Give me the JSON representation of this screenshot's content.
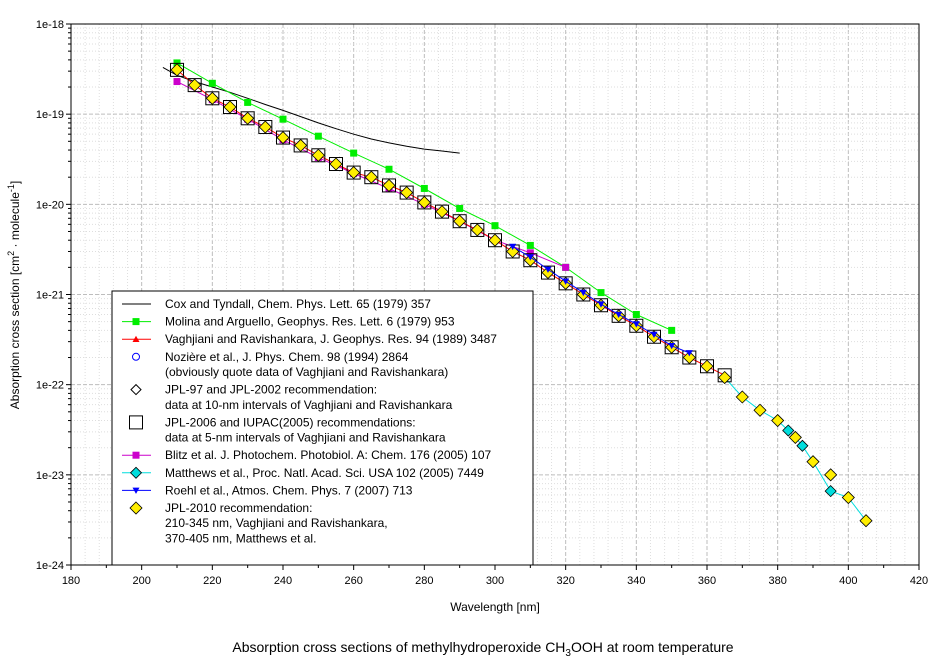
{
  "chart_data": {
    "type": "scatter",
    "title": "Absorption cross sections of methylhydroperoxide CH₃OOH at room temperature",
    "title_parts": {
      "pre": "Absorption cross sections of methylhydroperoxide CH",
      "sub": "3",
      "post": "OOH at room temperature"
    },
    "xlabel": "Wavelength [nm]",
    "ylabel_parts": {
      "a": "Absorption cross section [cm",
      "b": "2",
      "c": " · molecule",
      "d": "-1",
      "e": "]"
    },
    "xlim": [
      180,
      420
    ],
    "ylim": [
      1e-24,
      1e-18
    ],
    "x_ticks": [
      "180",
      "200",
      "220",
      "240",
      "260",
      "280",
      "300",
      "320",
      "340",
      "360",
      "380",
      "400",
      "420"
    ],
    "y_ticks": [
      "1e-24",
      "1e-23",
      "1e-22",
      "1e-21",
      "1e-20",
      "1e-19",
      "1e-18"
    ],
    "y_scale": "log",
    "grid": true,
    "legend_position": "bottom-left",
    "series": [
      {
        "name": "Cox and Tyndall",
        "legend_lines": [
          "Cox and Tyndall, Chem. Phys. Lett. 65 (1979) 357"
        ],
        "marker": "none",
        "color": "#000000",
        "line": true,
        "x": [
          206,
          210,
          215,
          220,
          225,
          230,
          235,
          240,
          245,
          250,
          255,
          260,
          265,
          270,
          275,
          280,
          285,
          290
        ],
        "y": [
          3.3e-19,
          2.7e-19,
          2.3e-19,
          2e-19,
          1.75e-19,
          1.5e-19,
          1.28e-19,
          1.1e-19,
          9.4e-20,
          8e-20,
          6.9e-20,
          6e-20,
          5.3e-20,
          4.8e-20,
          4.4e-20,
          4.1e-20,
          3.9e-20,
          3.7e-20
        ]
      },
      {
        "name": "Molina and Arguello",
        "legend_lines": [
          "Molina and Arguello, Geophys. Res. Lett. 6 (1979) 953"
        ],
        "marker": "square",
        "color": "#00ee00",
        "line": true,
        "x": [
          210,
          220,
          230,
          240,
          250,
          260,
          270,
          280,
          290,
          300,
          310,
          320,
          330,
          340,
          350
        ],
        "y": [
          3.7e-19,
          2.2e-19,
          1.35e-19,
          8.8e-20,
          5.7e-20,
          3.7e-20,
          2.45e-20,
          1.5e-20,
          9e-21,
          5.8e-21,
          3.5e-21,
          2e-21,
          1.05e-21,
          6e-22,
          4e-22
        ]
      },
      {
        "name": "Vaghjiani and Ravishankara",
        "legend_lines": [
          "Vaghjiani and Ravishankara, J. Geophys. Res. 94 (1989) 3487"
        ],
        "marker": "triangle",
        "color": "#ff0000",
        "line": true,
        "x": [
          210,
          215,
          220,
          225,
          230,
          235,
          240,
          245,
          250,
          255,
          260,
          265,
          270,
          275,
          280,
          285,
          290,
          295,
          300,
          305,
          310,
          315,
          320,
          325,
          330,
          335,
          340,
          345,
          350,
          355,
          360,
          365
        ],
        "y": [
          3.1e-19,
          2.1e-19,
          1.5e-19,
          1.2e-19,
          9e-20,
          7.2e-20,
          5.5e-20,
          4.5e-20,
          3.5e-20,
          2.8e-20,
          2.25e-20,
          2e-20,
          1.62e-20,
          1.35e-20,
          1.05e-20,
          8.3e-21,
          6.5e-21,
          5.2e-21,
          4e-21,
          3e-21,
          2.4e-21,
          1.75e-21,
          1.33e-21,
          1e-21,
          7.6e-22,
          5.8e-22,
          4.5e-22,
          3.4e-22,
          2.6e-22,
          2e-22,
          1.6e-22,
          1.27e-22
        ]
      },
      {
        "name": "Nozière et al.",
        "legend_lines": [
          "Nozière et al., J. Phys. Chem. 98 (1994) 2864",
          "(obviously quote data of Vaghjiani and Ravishankara)"
        ],
        "marker": "circle",
        "color": "#0000ff",
        "line": false,
        "x": [
          210,
          220,
          230,
          240,
          250,
          260,
          270,
          280,
          290,
          300,
          310,
          320,
          330,
          340,
          350,
          360
        ],
        "y": [
          3.1e-19,
          1.5e-19,
          9e-20,
          5.5e-20,
          3.5e-20,
          2.25e-20,
          1.62e-20,
          1.05e-20,
          6.5e-21,
          4e-21,
          2.4e-21,
          1.33e-21,
          7.6e-22,
          4.5e-22,
          2.6e-22,
          1.6e-22
        ]
      },
      {
        "name": "JPL-97 and JPL-2002 recommendation",
        "legend_lines": [
          "JPL-97 and JPL-2002 recommendation:",
          "data at 10-nm intervals  of Vaghjiani and Ravishankara"
        ],
        "marker": "diamond-open",
        "color": "#000000",
        "line": false,
        "x": [
          210,
          220,
          230,
          240,
          250,
          260,
          270,
          280,
          290,
          300,
          310,
          320,
          330,
          340,
          350,
          360
        ],
        "y": [
          3.1e-19,
          1.5e-19,
          9e-20,
          5.5e-20,
          3.5e-20,
          2.25e-20,
          1.62e-20,
          1.05e-20,
          6.5e-21,
          4e-21,
          2.4e-21,
          1.33e-21,
          7.6e-22,
          4.5e-22,
          2.6e-22,
          1.6e-22
        ]
      },
      {
        "name": "JPL-2006 and IUPAC(2005) recommendations",
        "legend_lines": [
          "JPL-2006 and IUPAC(2005) recommendations:",
          "data at 5-nm intervals  of Vaghjiani and Ravishankara"
        ],
        "marker": "square-open",
        "color": "#000000",
        "line": false,
        "x": [
          210,
          215,
          220,
          225,
          230,
          235,
          240,
          245,
          250,
          255,
          260,
          265,
          270,
          275,
          280,
          285,
          290,
          295,
          300,
          305,
          310,
          315,
          320,
          325,
          330,
          335,
          340,
          345,
          350,
          355,
          360,
          365
        ],
        "y": [
          3.1e-19,
          2.1e-19,
          1.5e-19,
          1.2e-19,
          9e-20,
          7.2e-20,
          5.5e-20,
          4.5e-20,
          3.5e-20,
          2.8e-20,
          2.25e-20,
          2e-20,
          1.62e-20,
          1.35e-20,
          1.05e-20,
          8.3e-21,
          6.5e-21,
          5.2e-21,
          4e-21,
          3e-21,
          2.4e-21,
          1.75e-21,
          1.33e-21,
          1e-21,
          7.6e-22,
          5.8e-22,
          4.5e-22,
          3.4e-22,
          2.6e-22,
          2e-22,
          1.6e-22,
          1.27e-22
        ]
      },
      {
        "name": "Blitz et al.",
        "legend_lines": [
          "Blitz et al. J. Photochem. Photobiol. A: Chem. 176 (2005) 107"
        ],
        "marker": "square",
        "color": "#cc00cc",
        "line": true,
        "x": [
          210,
          220,
          230,
          240,
          250,
          260,
          270,
          280,
          290,
          300,
          310,
          320
        ],
        "y": [
          2.3e-19,
          1.45e-19,
          8.8e-20,
          5.2e-20,
          3.3e-20,
          2.2e-20,
          1.5e-20,
          1e-20,
          6.5e-21,
          4e-21,
          2.9e-21,
          2e-21
        ]
      },
      {
        "name": "Matthews et al.",
        "legend_lines": [
          "Matthews et al., Proc. Natl. Acad. Sci. USA 102 (2005) 7449"
        ],
        "marker": "diamond",
        "color": "#00dddd",
        "line": true,
        "x": [
          365,
          370,
          375,
          380,
          383,
          385,
          387,
          390,
          395,
          400,
          405
        ],
        "y": [
          1.2e-22,
          7.3e-23,
          5.2e-23,
          4e-23,
          3.1e-23,
          2.6e-23,
          2.1e-23,
          1.4e-23,
          6.6e-24,
          5.6e-24,
          3.1e-24
        ]
      },
      {
        "name": "Roehl et al.",
        "legend_lines": [
          "Roehl et al., Atmos. Chem. Phys. 7 (2007) 713"
        ],
        "marker": "triangle-down",
        "color": "#0000ff",
        "line": true,
        "x": [
          305,
          310,
          315,
          320,
          325,
          330,
          335,
          340,
          345,
          350,
          355
        ],
        "y": [
          3.4e-21,
          2.6e-21,
          1.9e-21,
          1.4e-21,
          1.05e-21,
          7.8e-22,
          6e-22,
          4.7e-22,
          3.6e-22,
          2.7e-22,
          2.25e-22
        ]
      },
      {
        "name": "JPL-2010 recommendation",
        "legend_lines": [
          "JPL-2010 recommendation:",
          "210-345 nm, Vaghjiani and Ravishankara,",
          "370-405 nm, Matthews et al."
        ],
        "marker": "diamond",
        "color": "#ffee00",
        "line": false,
        "x": [
          210,
          215,
          220,
          225,
          230,
          235,
          240,
          245,
          250,
          255,
          260,
          265,
          270,
          275,
          280,
          285,
          290,
          295,
          300,
          305,
          310,
          315,
          320,
          325,
          330,
          335,
          340,
          345,
          350,
          355,
          360,
          365,
          370,
          375,
          380,
          385,
          390,
          395,
          400,
          405
        ],
        "y": [
          3.1e-19,
          2.1e-19,
          1.5e-19,
          1.2e-19,
          9e-20,
          7.2e-20,
          5.5e-20,
          4.5e-20,
          3.5e-20,
          2.8e-20,
          2.25e-20,
          2e-20,
          1.62e-20,
          1.35e-20,
          1.05e-20,
          8.3e-21,
          6.5e-21,
          5.2e-21,
          4e-21,
          3e-21,
          2.4e-21,
          1.75e-21,
          1.33e-21,
          1e-21,
          7.6e-22,
          5.8e-22,
          4.5e-22,
          3.4e-22,
          2.6e-22,
          2e-22,
          1.6e-22,
          1.2e-22,
          7.3e-23,
          5.2e-23,
          4e-23,
          2.6e-23,
          1.4e-23,
          1e-23,
          5.6e-24,
          3.1e-24
        ]
      }
    ]
  }
}
